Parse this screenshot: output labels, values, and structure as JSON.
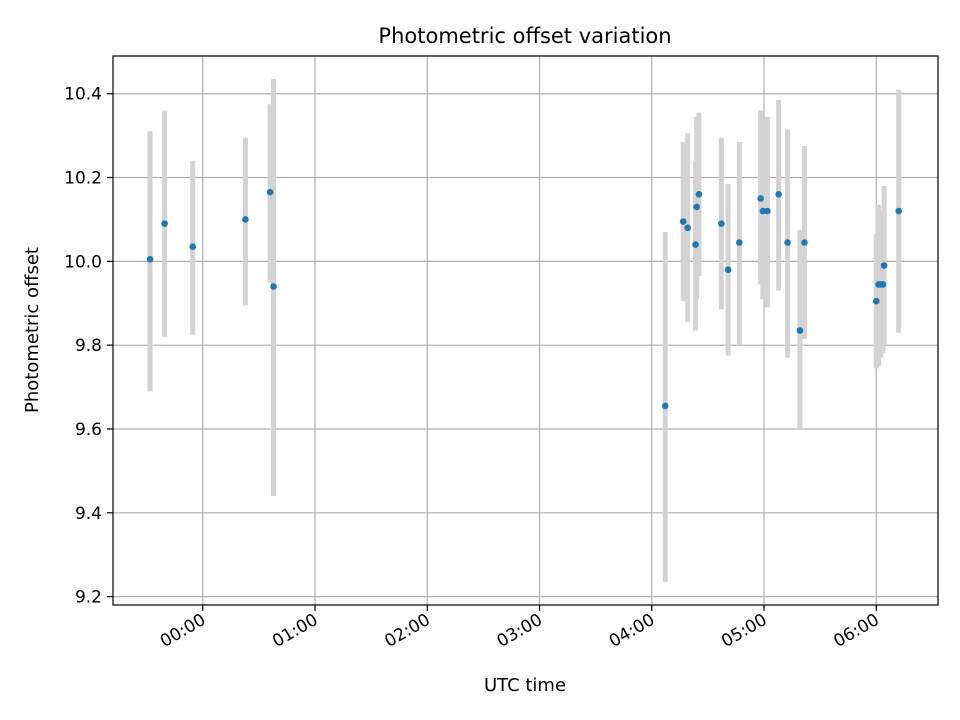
{
  "chart_data": {
    "type": "scatter",
    "title": "Photometric offset variation",
    "xlabel": "UTC time",
    "ylabel": "Photometric offset",
    "x_unit": "hours (UTC clock time, negative = before 00:00)",
    "xlim": [
      -0.8,
      6.55
    ],
    "ylim": [
      9.18,
      10.49
    ],
    "x_ticks": [
      0,
      1,
      2,
      3,
      4,
      5,
      6
    ],
    "x_tick_labels": [
      "00:00",
      "01:00",
      "02:00",
      "03:00",
      "04:00",
      "05:00",
      "06:00"
    ],
    "y_ticks": [
      9.2,
      9.4,
      9.6,
      9.8,
      10.0,
      10.2,
      10.4
    ],
    "y_tick_labels": [
      "9.2",
      "9.4",
      "9.6",
      "9.8",
      "10.0",
      "10.2",
      "10.4"
    ],
    "grid": true,
    "marker_color": "#1f77b4",
    "errorbar_color": "#d3d3d3",
    "points": [
      {
        "x": -0.47,
        "y": 10.005,
        "ylo": 9.69,
        "yhi": 10.31
      },
      {
        "x": -0.34,
        "y": 10.09,
        "ylo": 9.82,
        "yhi": 10.36
      },
      {
        "x": -0.09,
        "y": 10.035,
        "ylo": 9.825,
        "yhi": 10.24
      },
      {
        "x": 0.38,
        "y": 10.1,
        "ylo": 9.895,
        "yhi": 10.295
      },
      {
        "x": 0.6,
        "y": 10.165,
        "ylo": 9.95,
        "yhi": 10.375
      },
      {
        "x": 0.63,
        "y": 9.94,
        "ylo": 9.44,
        "yhi": 10.435
      },
      {
        "x": 4.12,
        "y": 9.655,
        "ylo": 9.235,
        "yhi": 10.07
      },
      {
        "x": 4.28,
        "y": 10.095,
        "ylo": 9.905,
        "yhi": 10.285
      },
      {
        "x": 4.32,
        "y": 10.08,
        "ylo": 9.855,
        "yhi": 10.305
      },
      {
        "x": 4.39,
        "y": 10.04,
        "ylo": 9.835,
        "yhi": 10.24
      },
      {
        "x": 4.4,
        "y": 10.13,
        "ylo": 9.91,
        "yhi": 10.345
      },
      {
        "x": 4.42,
        "y": 10.16,
        "ylo": 9.965,
        "yhi": 10.355
      },
      {
        "x": 4.62,
        "y": 10.09,
        "ylo": 9.885,
        "yhi": 10.295
      },
      {
        "x": 4.68,
        "y": 9.98,
        "ylo": 9.775,
        "yhi": 10.185
      },
      {
        "x": 4.78,
        "y": 10.045,
        "ylo": 9.8,
        "yhi": 10.285
      },
      {
        "x": 4.97,
        "y": 10.15,
        "ylo": 9.945,
        "yhi": 10.36
      },
      {
        "x": 4.99,
        "y": 10.12,
        "ylo": 9.91,
        "yhi": 10.34
      },
      {
        "x": 5.03,
        "y": 10.12,
        "ylo": 9.89,
        "yhi": 10.345
      },
      {
        "x": 5.13,
        "y": 10.16,
        "ylo": 9.93,
        "yhi": 10.385
      },
      {
        "x": 5.21,
        "y": 10.045,
        "ylo": 9.77,
        "yhi": 10.315
      },
      {
        "x": 5.32,
        "y": 9.835,
        "ylo": 9.6,
        "yhi": 10.075
      },
      {
        "x": 5.36,
        "y": 10.045,
        "ylo": 9.815,
        "yhi": 10.275
      },
      {
        "x": 6.0,
        "y": 9.905,
        "ylo": 9.745,
        "yhi": 10.065
      },
      {
        "x": 6.02,
        "y": 9.945,
        "ylo": 9.75,
        "yhi": 10.135
      },
      {
        "x": 6.04,
        "y": 9.945,
        "ylo": 9.77,
        "yhi": 10.12
      },
      {
        "x": 6.06,
        "y": 9.945,
        "ylo": 9.78,
        "yhi": 10.11
      },
      {
        "x": 6.07,
        "y": 9.99,
        "ylo": 9.8,
        "yhi": 10.18
      },
      {
        "x": 6.2,
        "y": 10.12,
        "ylo": 9.83,
        "yhi": 10.41
      }
    ]
  }
}
